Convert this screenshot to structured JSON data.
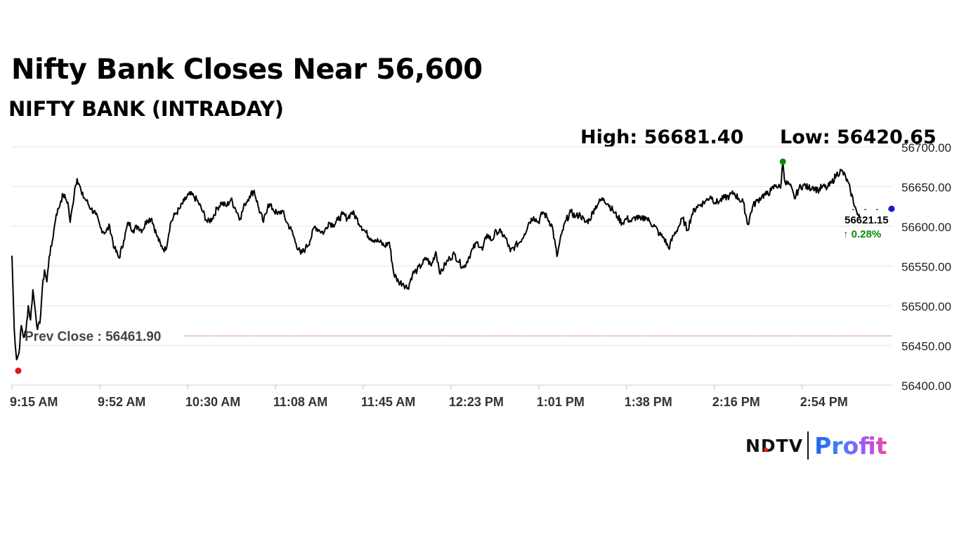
{
  "headline": "Nifty Bank Closes Near 56,600",
  "subheadline": "NIFTY BANK (INTRADAY)",
  "stats": {
    "high": "High: 56681.40",
    "low": "Low: 56420.65"
  },
  "brand": {
    "ndtv": "NDTV",
    "profit": "Profit"
  },
  "colors": {
    "line": "#000000",
    "grid": "#e6e6e6",
    "prev_close": "#d03030",
    "high_marker": "#118811",
    "low_marker": "#e0141e",
    "last_marker": "#1a1acc",
    "positive": "#0a8a0a"
  },
  "chart_data": {
    "type": "line",
    "title": "NIFTY BANK (INTRADAY)",
    "xlabel": "",
    "ylabel": "",
    "ylim": [
      56400,
      56700
    ],
    "xlim_minutes": [
      0,
      378
    ],
    "y_ticks": [
      "56400.00",
      "56450.00",
      "56500.00",
      "56550.00",
      "56600.00",
      "56650.00",
      "56700.00"
    ],
    "y_tick_values": [
      56400,
      56450,
      56500,
      56550,
      56600,
      56650,
      56700
    ],
    "x_tick_labels": [
      "9:15 AM",
      "9:52 AM",
      "10:30 AM",
      "11:08 AM",
      "11:45 AM",
      "12:23 PM",
      "1:01 PM",
      "1:38 PM",
      "2:16 PM",
      "2:54 PM"
    ],
    "x_tick_minutes": [
      0,
      37.7,
      75.4,
      113.1,
      150.8,
      188.5,
      226.2,
      263.9,
      301.6,
      339.3
    ],
    "prev_close": 56461.9,
    "prev_close_label": "Prev Close : 56461.90",
    "high": {
      "minute": 331,
      "value": 56681.4
    },
    "low": {
      "minute": 1.5,
      "value": 56420.65
    },
    "last": {
      "value": 56621.15,
      "label": "56621.15",
      "change": "0.28%",
      "arrow": "↑"
    },
    "series": [
      {
        "name": "Nifty Bank",
        "points": [
          [
            0,
            56563
          ],
          [
            1,
            56470
          ],
          [
            2,
            56432
          ],
          [
            3,
            56440
          ],
          [
            4,
            56475
          ],
          [
            5,
            56460
          ],
          [
            6,
            56468
          ],
          [
            7,
            56500
          ],
          [
            8,
            56482
          ],
          [
            9,
            56520
          ],
          [
            10,
            56495
          ],
          [
            11,
            56470
          ],
          [
            12,
            56478
          ],
          [
            13,
            56520
          ],
          [
            14,
            56545
          ],
          [
            15,
            56530
          ],
          [
            16,
            56562
          ],
          [
            17,
            56575
          ],
          [
            18,
            56595
          ],
          [
            19,
            56615
          ],
          [
            20,
            56622
          ],
          [
            21,
            56632
          ],
          [
            22,
            56640
          ],
          [
            23,
            56635
          ],
          [
            24,
            56630
          ],
          [
            25,
            56605
          ],
          [
            26,
            56625
          ],
          [
            27,
            56648
          ],
          [
            28,
            56660
          ],
          [
            29,
            56652
          ],
          [
            30,
            56640
          ],
          [
            32,
            56632
          ],
          [
            34,
            56622
          ],
          [
            36,
            56615
          ],
          [
            38,
            56598
          ],
          [
            40,
            56592
          ],
          [
            42,
            56600
          ],
          [
            44,
            56572
          ],
          [
            46,
            56560
          ],
          [
            48,
            56582
          ],
          [
            50,
            56605
          ],
          [
            52,
            56595
          ],
          [
            54,
            56600
          ],
          [
            56,
            56595
          ],
          [
            58,
            56608
          ],
          [
            60,
            56610
          ],
          [
            62,
            56590
          ],
          [
            64,
            56575
          ],
          [
            66,
            56570
          ],
          [
            68,
            56603
          ],
          [
            70,
            56615
          ],
          [
            72,
            56622
          ],
          [
            74,
            56632
          ],
          [
            76,
            56640
          ],
          [
            78,
            56638
          ],
          [
            80,
            56630
          ],
          [
            82,
            56618
          ],
          [
            84,
            56605
          ],
          [
            86,
            56610
          ],
          [
            88,
            56622
          ],
          [
            90,
            56630
          ],
          [
            92,
            56625
          ],
          [
            94,
            56634
          ],
          [
            96,
            56622
          ],
          [
            98,
            56610
          ],
          [
            100,
            56628
          ],
          [
            102,
            56638
          ],
          [
            104,
            56645
          ],
          [
            106,
            56622
          ],
          [
            108,
            56605
          ],
          [
            110,
            56628
          ],
          [
            112,
            56622
          ],
          [
            114,
            56615
          ],
          [
            116,
            56620
          ],
          [
            118,
            56605
          ],
          [
            120,
            56595
          ],
          [
            122,
            56578
          ],
          [
            124,
            56565
          ],
          [
            126,
            56572
          ],
          [
            128,
            56582
          ],
          [
            130,
            56600
          ],
          [
            132,
            56595
          ],
          [
            134,
            56592
          ],
          [
            136,
            56605
          ],
          [
            138,
            56602
          ],
          [
            140,
            56608
          ],
          [
            142,
            56615
          ],
          [
            144,
            56610
          ],
          [
            146,
            56618
          ],
          [
            148,
            56610
          ],
          [
            150,
            56600
          ],
          [
            152,
            56592
          ],
          [
            154,
            56585
          ],
          [
            156,
            56583
          ],
          [
            158,
            56580
          ],
          [
            160,
            56575
          ],
          [
            162,
            56580
          ],
          [
            164,
            56540
          ],
          [
            166,
            56530
          ],
          [
            168,
            56528
          ],
          [
            170,
            56522
          ],
          [
            172,
            56540
          ],
          [
            174,
            56545
          ],
          [
            176,
            56552
          ],
          [
            178,
            56560
          ],
          [
            180,
            56550
          ],
          [
            182,
            56568
          ],
          [
            184,
            56540
          ],
          [
            186,
            56552
          ],
          [
            188,
            56560
          ],
          [
            190,
            56565
          ],
          [
            192,
            56555
          ],
          [
            194,
            56548
          ],
          [
            196,
            56560
          ],
          [
            198,
            56572
          ],
          [
            200,
            56580
          ],
          [
            202,
            56570
          ],
          [
            204,
            56590
          ],
          [
            206,
            56582
          ],
          [
            208,
            56594
          ],
          [
            210,
            56592
          ],
          [
            212,
            56585
          ],
          [
            214,
            56568
          ],
          [
            216,
            56575
          ],
          [
            218,
            56580
          ],
          [
            220,
            56590
          ],
          [
            222,
            56605
          ],
          [
            224,
            56612
          ],
          [
            226,
            56605
          ],
          [
            228,
            56618
          ],
          [
            230,
            56610
          ],
          [
            232,
            56600
          ],
          [
            234,
            56562
          ],
          [
            236,
            56590
          ],
          [
            238,
            56608
          ],
          [
            240,
            56618
          ],
          [
            242,
            56612
          ],
          [
            244,
            56615
          ],
          [
            246,
            56605
          ],
          [
            248,
            56608
          ],
          [
            250,
            56622
          ],
          [
            252,
            56630
          ],
          [
            254,
            56635
          ],
          [
            256,
            56628
          ],
          [
            258,
            56620
          ],
          [
            260,
            56612
          ],
          [
            262,
            56604
          ],
          [
            264,
            56610
          ],
          [
            266,
            56606
          ],
          [
            268,
            56612
          ],
          [
            270,
            56608
          ],
          [
            272,
            56612
          ],
          [
            274,
            56605
          ],
          [
            276,
            56600
          ],
          [
            278,
            56590
          ],
          [
            280,
            56585
          ],
          [
            282,
            56572
          ],
          [
            284,
            56588
          ],
          [
            286,
            56598
          ],
          [
            288,
            56610
          ],
          [
            290,
            56595
          ],
          [
            292,
            56615
          ],
          [
            294,
            56625
          ],
          [
            296,
            56628
          ],
          [
            298,
            56632
          ],
          [
            300,
            56638
          ],
          [
            302,
            56630
          ],
          [
            304,
            56632
          ],
          [
            306,
            56636
          ],
          [
            308,
            56638
          ],
          [
            310,
            56642
          ],
          [
            312,
            56635
          ],
          [
            314,
            56630
          ],
          [
            316,
            56602
          ],
          [
            318,
            56625
          ],
          [
            320,
            56632
          ],
          [
            322,
            56638
          ],
          [
            324,
            56640
          ],
          [
            326,
            56645
          ],
          [
            328,
            56652
          ],
          [
            330,
            56648
          ],
          [
            331,
            56681
          ],
          [
            332,
            56655
          ],
          [
            334,
            56652
          ],
          [
            336,
            56635
          ],
          [
            338,
            56648
          ],
          [
            340,
            56652
          ],
          [
            342,
            56648
          ],
          [
            344,
            56650
          ],
          [
            346,
            56645
          ],
          [
            348,
            56650
          ],
          [
            350,
            56648
          ],
          [
            352,
            56655
          ],
          [
            354,
            56665
          ],
          [
            356,
            56670
          ],
          [
            358,
            56662
          ],
          [
            360,
            56645
          ],
          [
            362,
            56625
          ],
          [
            363,
            56615
          ],
          [
            364,
            56610
          ]
        ]
      }
    ]
  }
}
